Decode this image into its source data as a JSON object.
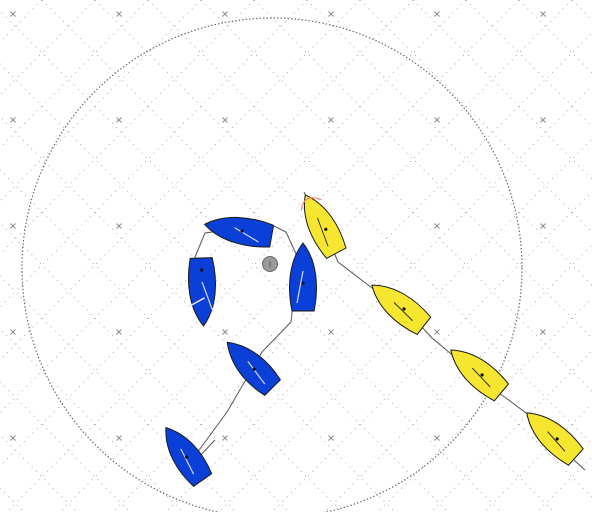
{
  "mark": {
    "label": "!"
  },
  "colors": {
    "background": "#ffffff",
    "grid_dot": "#9a9a9a",
    "grid_cross": "#8a8a8a",
    "zone_circle": "#6a6a6a",
    "blue_hull": "#0a3fd8",
    "yellow_hull": "#f6e630",
    "hull_outline": "#1a1a1a",
    "track_line": "#555555",
    "mark_fill": "#9a9a9a",
    "highlight": "#f08a7a"
  },
  "icons": {
    "boat": "sailboat-icon",
    "mark": "mark-buoy-icon",
    "zone": "three-length-circle"
  }
}
